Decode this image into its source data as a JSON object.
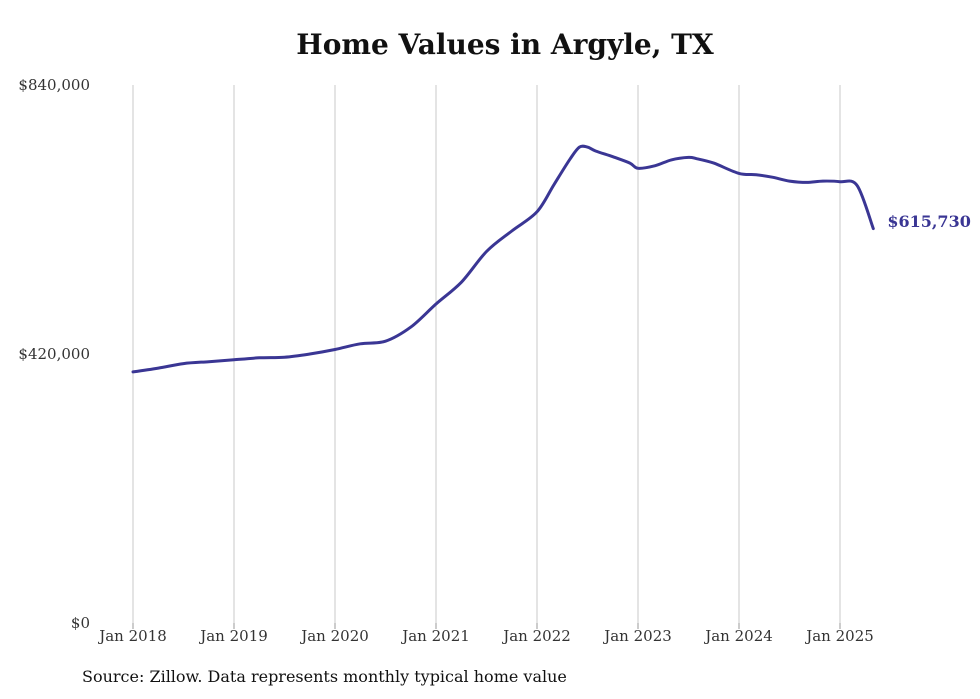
{
  "chart_data": {
    "type": "line",
    "title": "Home Values in Argyle, TX",
    "xlabel": "",
    "ylabel": "",
    "ylim": [
      0,
      840000
    ],
    "yticks": [
      {
        "value": 0,
        "label": "$0"
      },
      {
        "value": 420000,
        "label": "$420,000"
      },
      {
        "value": 840000,
        "label": "$840,000"
      }
    ],
    "xticks": [
      {
        "value": 2018.0,
        "label": "Jan 2018"
      },
      {
        "value": 2019.0,
        "label": "Jan 2019"
      },
      {
        "value": 2020.0,
        "label": "Jan 2020"
      },
      {
        "value": 2021.0,
        "label": "Jan 2021"
      },
      {
        "value": 2022.0,
        "label": "Jan 2022"
      },
      {
        "value": 2023.0,
        "label": "Jan 2023"
      },
      {
        "value": 2024.0,
        "label": "Jan 2024"
      },
      {
        "value": 2025.0,
        "label": "Jan 2025"
      }
    ],
    "xlim": [
      2017.99,
      2025.38
    ],
    "grid": {
      "vertical": true,
      "horizontal": false
    },
    "line_color": "#3a3694",
    "end_label": "$615,730",
    "series": [
      {
        "name": "",
        "x": [
          2018.0,
          2018.25,
          2018.5,
          2018.75,
          2019.0,
          2019.25,
          2019.5,
          2019.75,
          2020.0,
          2020.25,
          2020.5,
          2020.75,
          2021.0,
          2021.25,
          2021.5,
          2021.75,
          2022.0,
          2022.17,
          2022.33,
          2022.42,
          2022.5,
          2022.58,
          2022.75,
          2022.92,
          2023.0,
          2023.17,
          2023.33,
          2023.5,
          2023.58,
          2023.75,
          2024.0,
          2024.17,
          2024.33,
          2024.5,
          2024.67,
          2024.83,
          2025.0,
          2025.17,
          2025.33
        ],
        "values": [
          392000,
          398000,
          405000,
          408000,
          411000,
          414000,
          415000,
          420000,
          427000,
          436000,
          440000,
          462000,
          498000,
          532000,
          580000,
          612000,
          642000,
          685000,
          725000,
          743000,
          743000,
          737000,
          728000,
          718000,
          710000,
          714000,
          723000,
          727000,
          725000,
          718000,
          702000,
          700000,
          696000,
          690000,
          688000,
          690000,
          689000,
          683000,
          615730
        ]
      }
    ]
  },
  "source_note": "Source: Zillow. Data represents monthly typical home value"
}
